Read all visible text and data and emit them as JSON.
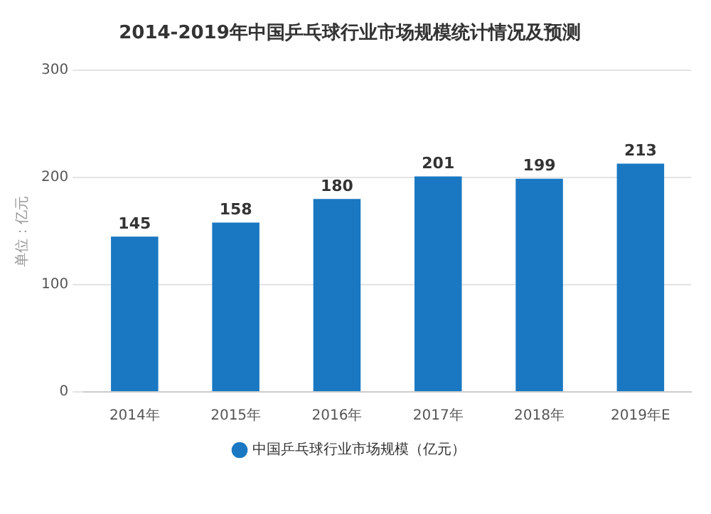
{
  "chart_data": {
    "type": "bar",
    "title": "2014-2019年中国乒乓球行业市场规模统计情况及预测",
    "ylabel": "单位：亿元",
    "categories": [
      "2014年",
      "2015年",
      "2016年",
      "2017年",
      "2018年",
      "2019年E"
    ],
    "series": [
      {
        "name": "中国乒乓球行业市场规模（亿元）",
        "color": "#1a78c2",
        "values": [
          145,
          158,
          180,
          201,
          199,
          213
        ]
      }
    ],
    "ylim": [
      0,
      300
    ],
    "yticks": [
      0,
      100,
      200,
      300
    ],
    "grid": "y",
    "legend": "bottom",
    "data_labels": true
  }
}
